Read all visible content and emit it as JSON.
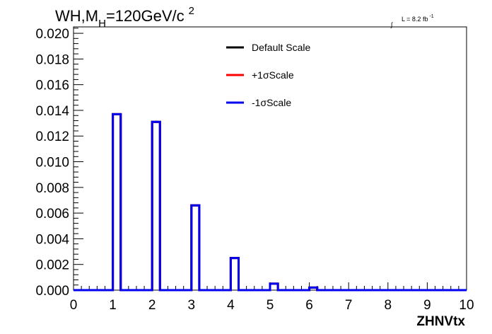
{
  "chart_data": {
    "type": "line",
    "title_parts": {
      "prefix": "WH,M",
      "subscript": "H",
      "value": "=120GeV/c",
      "superscript": "2"
    },
    "luminosity": {
      "integral_symbol": "∫",
      "text": "L = 8.2 fb",
      "exponent": "-1"
    },
    "xlabel": "ZHNVtx",
    "xlim": [
      0,
      10
    ],
    "ylim": [
      0,
      0.0205
    ],
    "x_ticks": [
      0,
      1,
      2,
      3,
      4,
      5,
      6,
      7,
      8,
      9,
      10
    ],
    "x_tick_labels": [
      "0",
      "1",
      "2",
      "3",
      "4",
      "5",
      "6",
      "7",
      "8",
      "9",
      "10"
    ],
    "y_ticks": [
      0,
      0.002,
      0.004,
      0.006,
      0.008,
      0.01,
      0.012,
      0.014,
      0.016,
      0.018,
      0.02
    ],
    "y_tick_labels": [
      "0.000",
      "0.002",
      "0.004",
      "0.006",
      "0.008",
      "0.010",
      "0.012",
      "0.014",
      "0.016",
      "0.018",
      "0.020"
    ],
    "bin_width": 0.2,
    "series": [
      {
        "name": "Default Scale",
        "color": "#000000",
        "bins": [
          {
            "x": 1.0,
            "y": 0.0137
          },
          {
            "x": 2.0,
            "y": 0.0131
          },
          {
            "x": 3.0,
            "y": 0.0066
          },
          {
            "x": 4.0,
            "y": 0.0025
          },
          {
            "x": 5.0,
            "y": 0.0005
          },
          {
            "x": 6.0,
            "y": 0.0002
          }
        ]
      },
      {
        "name": "+1σScale",
        "color": "#ff0000",
        "bins": [
          {
            "x": 1.0,
            "y": 0.0137
          },
          {
            "x": 2.0,
            "y": 0.0131
          },
          {
            "x": 3.0,
            "y": 0.0066
          },
          {
            "x": 4.0,
            "y": 0.0025
          },
          {
            "x": 5.0,
            "y": 0.0005
          },
          {
            "x": 6.0,
            "y": 0.0002
          }
        ]
      },
      {
        "name": "-1σScale",
        "color": "#0000ee",
        "bins": [
          {
            "x": 1.0,
            "y": 0.0137
          },
          {
            "x": 2.0,
            "y": 0.0131
          },
          {
            "x": 3.0,
            "y": 0.0066
          },
          {
            "x": 4.0,
            "y": 0.0025
          },
          {
            "x": 5.0,
            "y": 0.0005
          },
          {
            "x": 6.0,
            "y": 0.0002
          }
        ]
      }
    ],
    "legend": {
      "entries": [
        "Default Scale",
        "+1σScale",
        "-1σScale"
      ],
      "placement": "top-center"
    },
    "grid": false
  }
}
